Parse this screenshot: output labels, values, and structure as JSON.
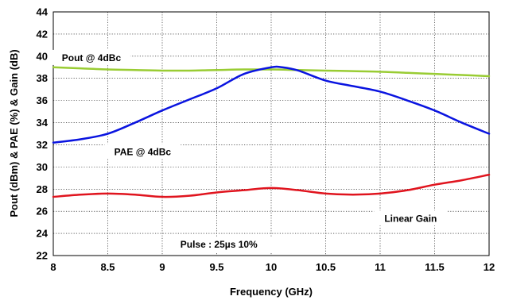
{
  "chart_data": {
    "type": "line",
    "xlabel": "Frequency (GHz)",
    "ylabel": "Pout (dBm) & PAE (%)  & Gain (dB)",
    "xlim": [
      8,
      12
    ],
    "ylim": [
      22,
      44
    ],
    "xticks": [
      "8",
      "8.5",
      "9",
      "9.5",
      "10",
      "10.5",
      "11",
      "11.5",
      "12"
    ],
    "yticks": [
      "22",
      "24",
      "26",
      "28",
      "30",
      "32",
      "34",
      "36",
      "38",
      "40",
      "42",
      "44"
    ],
    "grid": true,
    "series": [
      {
        "label": "Pout @ 4dBc",
        "color": "#99cc33",
        "x": [
          8,
          8.25,
          8.5,
          8.75,
          9,
          9.25,
          9.5,
          9.75,
          10,
          10.25,
          10.5,
          10.75,
          11,
          11.25,
          11.5,
          11.75,
          12
        ],
        "y": [
          39.0,
          38.9,
          38.8,
          38.75,
          38.7,
          38.7,
          38.75,
          38.8,
          38.8,
          38.75,
          38.7,
          38.65,
          38.6,
          38.5,
          38.4,
          38.3,
          38.2
        ]
      },
      {
        "label": "PAE @ 4dBc",
        "color": "#0a14e0",
        "x": [
          8,
          8.25,
          8.5,
          8.75,
          9,
          9.25,
          9.5,
          9.75,
          10,
          10.1,
          10.25,
          10.5,
          10.75,
          11,
          11.25,
          11.5,
          11.75,
          12
        ],
        "y": [
          32.2,
          32.5,
          33.0,
          34.0,
          35.1,
          36.1,
          37.1,
          38.4,
          39.0,
          39.0,
          38.7,
          37.8,
          37.3,
          36.8,
          36.0,
          35.1,
          34.0,
          33.0
        ]
      },
      {
        "label": "Linear Gain",
        "color": "#e0141e",
        "x": [
          8,
          8.25,
          8.5,
          8.75,
          9,
          9.25,
          9.5,
          9.75,
          10,
          10.25,
          10.5,
          10.75,
          11,
          11.25,
          11.5,
          11.75,
          12
        ],
        "y": [
          27.3,
          27.5,
          27.6,
          27.5,
          27.3,
          27.4,
          27.7,
          27.9,
          28.1,
          27.9,
          27.6,
          27.5,
          27.6,
          27.9,
          28.4,
          28.8,
          29.3
        ]
      }
    ],
    "annotations": [
      {
        "text": "Pout @ 4dBc"
      },
      {
        "text": "PAE @ 4dBc"
      },
      {
        "text": "Linear Gain"
      },
      {
        "text": "Pulse : 25µs 10%"
      }
    ]
  }
}
